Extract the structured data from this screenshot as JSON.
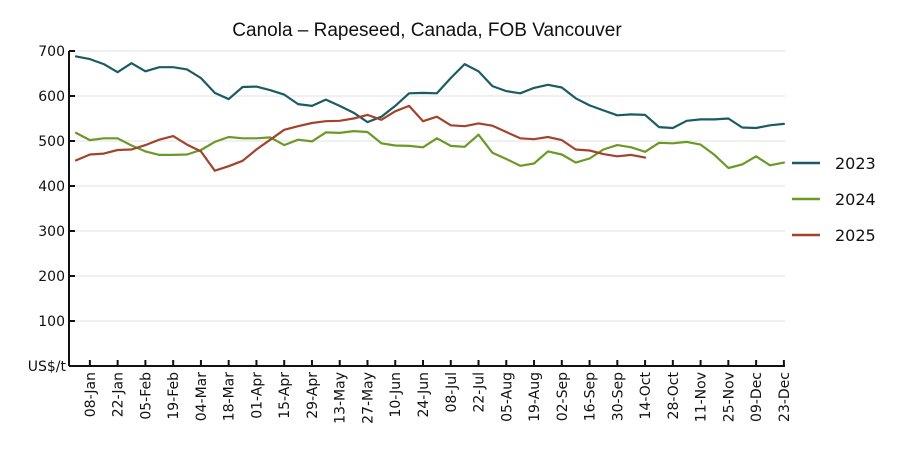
{
  "chart_data": {
    "type": "line",
    "title": "Canola – Rapeseed, Canada, FOB Vancouver",
    "xlabel": "",
    "ylabel": "US$/t",
    "ylim": [
      0,
      700
    ],
    "yticks": [
      100,
      200,
      300,
      400,
      500,
      600,
      700
    ],
    "ytick_labels": [
      "100",
      "200",
      "300",
      "400",
      "500",
      "600",
      "700"
    ],
    "y_origin_label": "US$/t",
    "grid": "horizontal",
    "legend_position": "right",
    "x_unit": "week",
    "x_count": 52,
    "xtick_labels": [
      "08-Jan",
      "22-Jan",
      "05-Feb",
      "19-Feb",
      "04-Mar",
      "18-Mar",
      "01-Apr",
      "15-Apr",
      "29-Apr",
      "13-May",
      "27-May",
      "10-Jun",
      "24-Jun",
      "08-Jul",
      "22-Jul",
      "05-Aug",
      "19-Aug",
      "02-Sep",
      "16-Sep",
      "30-Sep",
      "14-Oct",
      "28-Oct",
      "11-Nov",
      "25-Nov",
      "09-Dec",
      "23-Dec"
    ],
    "xtick_week_index": [
      1,
      3,
      5,
      7,
      9,
      11,
      13,
      15,
      17,
      19,
      21,
      23,
      25,
      27,
      29,
      31,
      33,
      35,
      37,
      39,
      41,
      43,
      45,
      47,
      49,
      51
    ],
    "series": [
      {
        "name": "2023",
        "color": "#1a5c63",
        "values": [
          688,
          682,
          671,
          653,
          673,
          655,
          664,
          664,
          659,
          640,
          607,
          593,
          620,
          621,
          613,
          603,
          582,
          578,
          592,
          578,
          563,
          542,
          554,
          578,
          606,
          607,
          606,
          640,
          671,
          655,
          622,
          611,
          606,
          618,
          625,
          619,
          595,
          579,
          568,
          557,
          559,
          558,
          531,
          529,
          545,
          548,
          548,
          550,
          530,
          529,
          535,
          538
        ]
      },
      {
        "name": "2024",
        "color": "#6a9a25",
        "values": [
          518,
          502,
          506,
          506,
          490,
          477,
          469,
          469,
          470,
          480,
          498,
          509,
          506,
          506,
          508,
          491,
          503,
          499,
          519,
          518,
          522,
          520,
          495,
          490,
          489,
          486,
          506,
          489,
          487,
          514,
          474,
          460,
          445,
          450,
          477,
          470,
          452,
          461,
          481,
          491,
          486,
          476,
          496,
          495,
          498,
          492,
          469,
          440,
          448,
          466,
          446,
          452
        ]
      },
      {
        "name": "2025",
        "color": "#a3432c",
        "values": [
          457,
          470,
          472,
          480,
          481,
          491,
          503,
          511,
          492,
          477,
          434,
          444,
          456,
          481,
          503,
          525,
          533,
          540,
          544,
          545,
          550,
          558,
          547,
          566,
          578,
          544,
          554,
          535,
          533,
          539,
          534,
          520,
          506,
          504,
          509,
          502,
          481,
          479,
          471,
          466,
          469,
          463
        ]
      }
    ]
  }
}
